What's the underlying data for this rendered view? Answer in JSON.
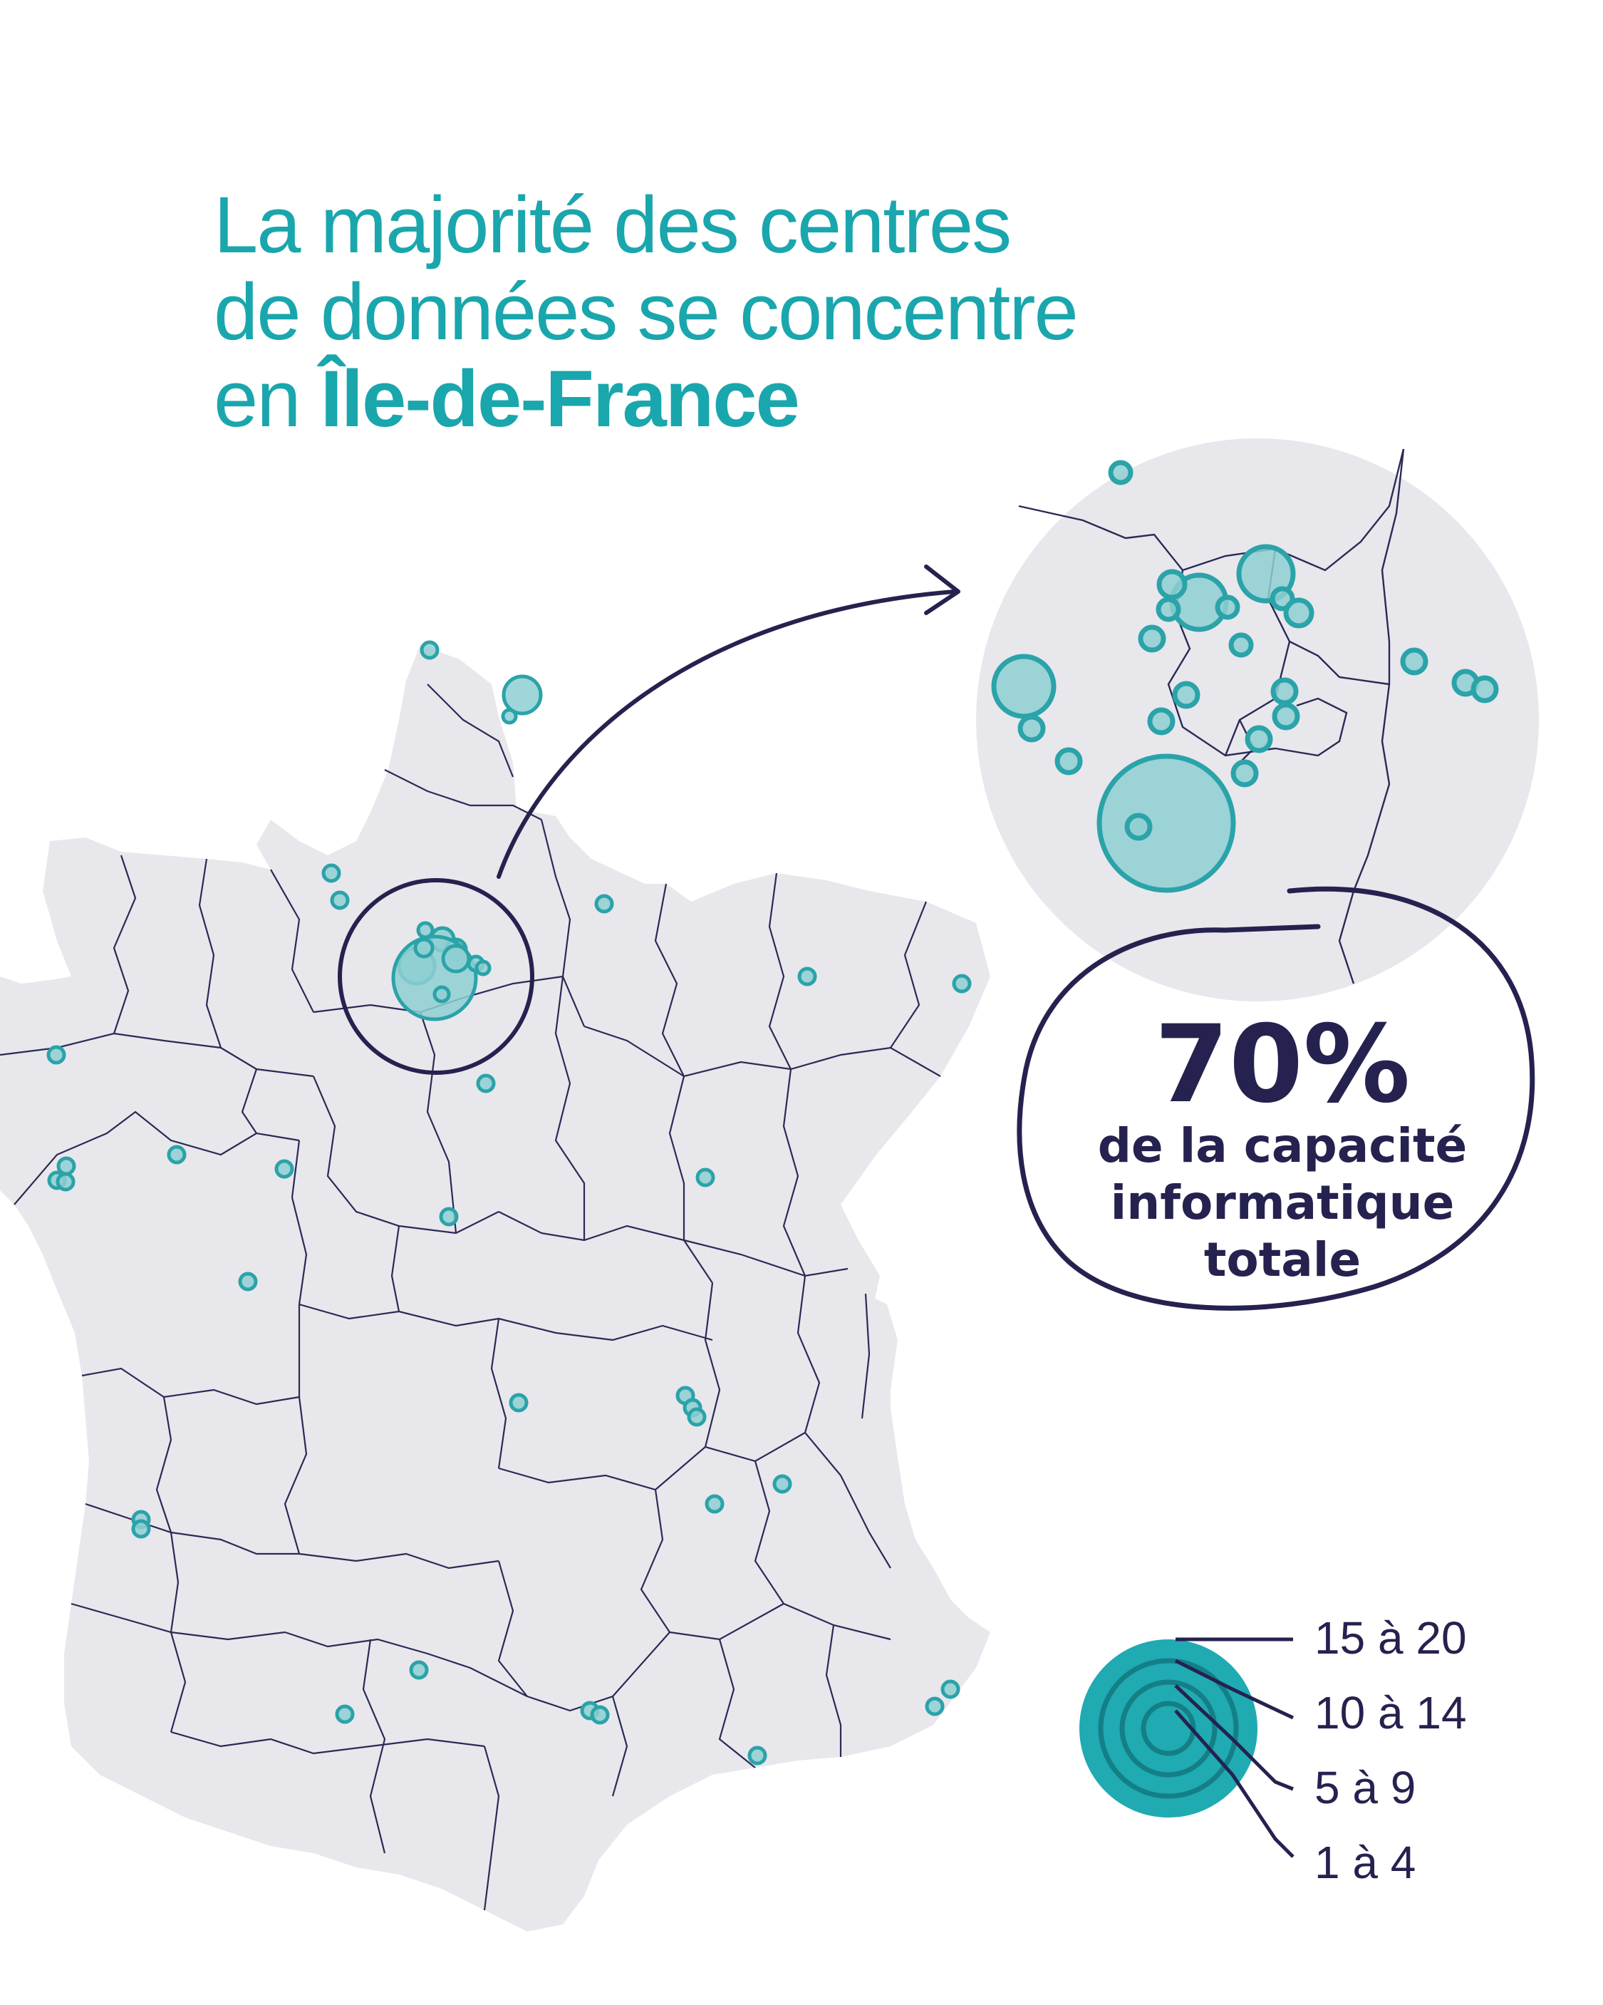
{
  "title": {
    "line1": "La majorité des centres",
    "line2": "de données se concentre",
    "line3_prefix": "en ",
    "line3_emphasis": "Île-de-France"
  },
  "callout": {
    "percent": "70%",
    "line1": "de la capacité",
    "line2": "informatique",
    "line3": "totale"
  },
  "legend": {
    "title": "",
    "items": [
      {
        "label": "15 à 20"
      },
      {
        "label": "10 à 14"
      },
      {
        "label": "5 à 9"
      },
      {
        "label": "1 à 4"
      }
    ]
  },
  "colors": {
    "accent": "#1aa6ad",
    "dark": "#25224f",
    "land": "#e8e7ec",
    "bubble_fill": "#8ecfd2",
    "bubble_stroke": "#2aa3a9"
  }
}
